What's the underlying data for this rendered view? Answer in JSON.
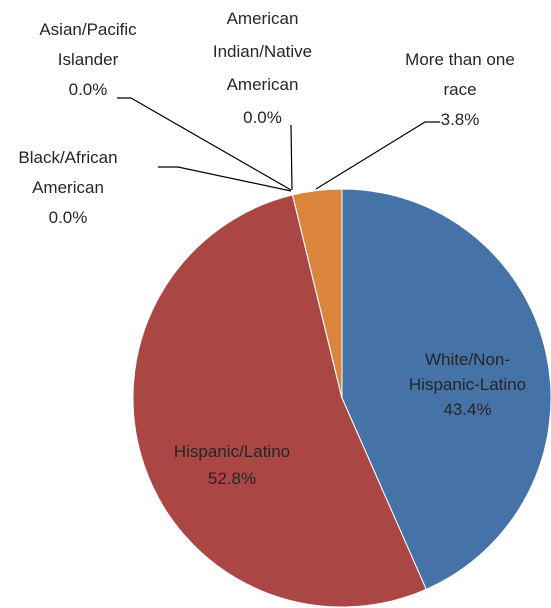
{
  "chart_data": {
    "type": "pie",
    "categories": [
      "White/Non-Hispanic-Latino",
      "Hispanic/Latino",
      "Black/African American",
      "Asian/Pacific Islander",
      "American Indian/Native American",
      "More than one race"
    ],
    "values": [
      43.4,
      52.8,
      0.0,
      0.0,
      0.0,
      3.8
    ],
    "value_labels": [
      "43.4%",
      "52.8%",
      "0.0%",
      "0.0%",
      "0.0%",
      "3.8%"
    ],
    "colors": [
      "#4572a7",
      "#aa4643",
      "#89a54e",
      "#80699b",
      "#3d96ae",
      "#db843d"
    ]
  }
}
